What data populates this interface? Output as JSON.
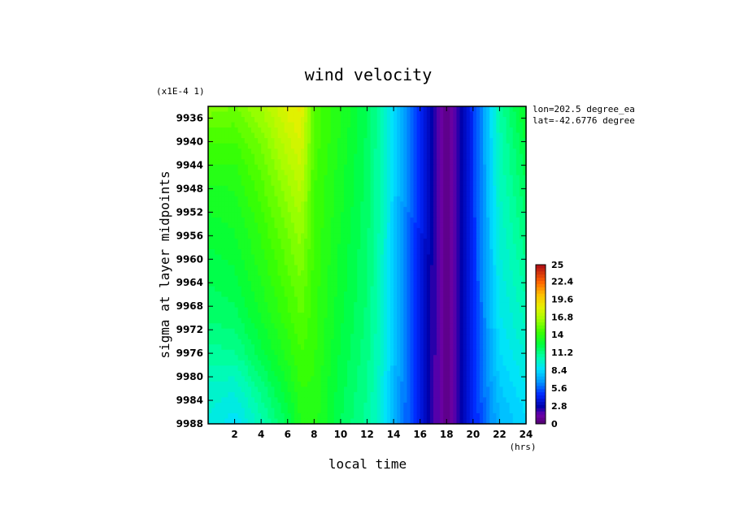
{
  "chart_data": {
    "type": "heatmap",
    "title": "wind velocity",
    "xlabel": "local time",
    "x_unit": "(hrs)",
    "ylabel": "sigma at layer midpoints",
    "y_scale_note": "(x1E-4 1)",
    "annotations": [
      "lon=202.5 degree_ea",
      "lat=-42.6776 degree"
    ],
    "xlim": [
      0,
      24
    ],
    "ylim": [
      9934,
      9988
    ],
    "y_inverted": true,
    "x_ticks": [
      2,
      4,
      6,
      8,
      10,
      12,
      14,
      16,
      18,
      20,
      22,
      24
    ],
    "y_ticks": [
      9936,
      9940,
      9944,
      9948,
      9952,
      9956,
      9960,
      9964,
      9968,
      9972,
      9976,
      9980,
      9984,
      9988
    ],
    "colorbar": {
      "min": 0,
      "max": 25,
      "levels": 50,
      "labels": [
        "25",
        "22.4",
        "19.6",
        "16.8",
        "14",
        "11.2",
        "8.4",
        "5.6",
        "2.8",
        "0"
      ],
      "label_values": [
        25,
        22.4,
        19.6,
        16.8,
        14,
        11.2,
        8.4,
        5.6,
        2.8,
        0
      ]
    },
    "grid": false,
    "x": [
      0,
      2,
      4,
      6,
      7,
      8,
      10,
      12,
      13,
      14,
      16,
      17,
      18,
      19,
      20,
      21,
      22,
      24
    ],
    "y": [
      9934,
      9940,
      9946,
      9952,
      9958,
      9964,
      9970,
      9976,
      9982,
      9988
    ],
    "z": [
      [
        15.8,
        15.5,
        16.6,
        18.3,
        18.6,
        14.8,
        13.6,
        12.0,
        10.6,
        8.5,
        4.4,
        2.4,
        0.6,
        2.5,
        4.8,
        7.4,
        10.6,
        13.2
      ],
      [
        14.6,
        14.5,
        15.6,
        17.4,
        18.0,
        14.8,
        13.4,
        11.9,
        10.5,
        8.4,
        4.4,
        2.4,
        0.6,
        2.5,
        4.7,
        7.4,
        10.3,
        12.6
      ],
      [
        13.6,
        13.7,
        15.0,
        16.6,
        17.4,
        14.6,
        13.2,
        11.8,
        10.4,
        8.3,
        4.3,
        2.3,
        0.6,
        2.5,
        4.7,
        7.3,
        10.1,
        12.1
      ],
      [
        13.0,
        13.2,
        14.4,
        15.9,
        16.6,
        14.5,
        13.1,
        11.7,
        10.4,
        8.2,
        4.3,
        2.3,
        0.6,
        2.5,
        4.7,
        7.2,
        9.8,
        11.6
      ],
      [
        12.5,
        12.8,
        13.9,
        15.3,
        16.0,
        14.4,
        12.9,
        11.6,
        10.3,
        8.1,
        4.2,
        2.3,
        0.6,
        2.5,
        4.6,
        7.1,
        9.5,
        11.2
      ],
      [
        12.0,
        12.3,
        13.5,
        14.8,
        15.5,
        14.3,
        12.8,
        11.5,
        10.2,
        8.0,
        4.2,
        2.2,
        0.6,
        2.5,
        4.6,
        7.0,
        9.2,
        10.7
      ],
      [
        11.6,
        11.8,
        13.0,
        14.3,
        15.0,
        14.2,
        12.6,
        11.4,
        10.1,
        7.9,
        4.1,
        2.2,
        0.6,
        2.5,
        4.5,
        6.8,
        8.9,
        10.2
      ],
      [
        10.8,
        10.9,
        12.3,
        13.7,
        14.5,
        14.1,
        12.4,
        11.2,
        9.9,
        7.8,
        4.1,
        2.2,
        0.6,
        2.4,
        4.5,
        6.6,
        8.5,
        9.6
      ],
      [
        9.9,
        9.6,
        11.2,
        12.9,
        14.0,
        13.9,
        12.2,
        11.0,
        9.7,
        7.6,
        4.0,
        2.1,
        0.6,
        2.4,
        4.4,
        6.3,
        7.9,
        8.9
      ],
      [
        9.4,
        8.6,
        10.3,
        12.1,
        13.5,
        13.8,
        12.0,
        10.8,
        9.5,
        7.5,
        4.0,
        2.1,
        0.6,
        2.4,
        4.3,
        6.0,
        7.4,
        8.4
      ]
    ]
  }
}
